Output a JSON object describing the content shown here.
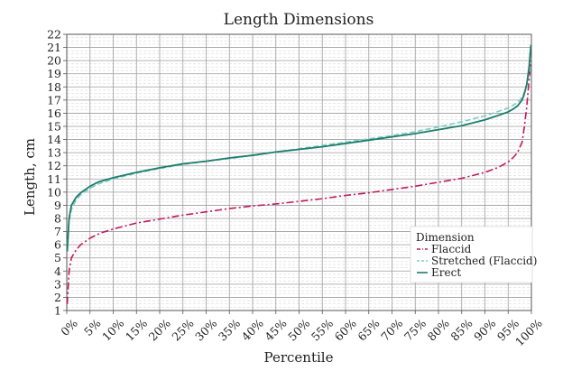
{
  "chart_data": {
    "type": "line",
    "title": "Length Dimensions",
    "xlabel": "Percentile",
    "ylabel": "Length, cm",
    "xlim": [
      0,
      100
    ],
    "ylim": [
      1,
      22
    ],
    "x_ticks": [
      "0%",
      "5%",
      "10%",
      "15%",
      "20%",
      "25%",
      "30%",
      "35%",
      "40%",
      "45%",
      "50%",
      "55%",
      "60%",
      "65%",
      "70%",
      "75%",
      "80%",
      "85%",
      "90%",
      "95%",
      "100%"
    ],
    "y_ticks": [
      1,
      2,
      3,
      4,
      5,
      6,
      7,
      8,
      9,
      10,
      11,
      12,
      13,
      14,
      15,
      16,
      17,
      18,
      19,
      20,
      21,
      22
    ],
    "grid": true,
    "legend": {
      "title": "Dimension",
      "placement": "bottom-right"
    },
    "series": [
      {
        "name": "Flaccid",
        "color": "#c2185b",
        "dash": "dash-dot",
        "x": [
          0.1,
          0.5,
          1,
          2,
          3,
          5,
          7,
          10,
          15,
          20,
          25,
          30,
          35,
          40,
          45,
          50,
          55,
          60,
          65,
          70,
          75,
          80,
          85,
          90,
          93,
          95,
          96,
          97,
          98,
          98.5,
          99,
          99.5,
          99.9
        ],
        "y": [
          1.5,
          4.0,
          5.0,
          5.6,
          6.0,
          6.5,
          6.85,
          7.2,
          7.65,
          7.95,
          8.25,
          8.5,
          8.75,
          8.95,
          9.1,
          9.3,
          9.5,
          9.75,
          9.95,
          10.2,
          10.45,
          10.75,
          11.05,
          11.5,
          11.9,
          12.3,
          12.6,
          13.0,
          13.8,
          15.0,
          16.5,
          18.5,
          20.0
        ]
      },
      {
        "name": "Stretched (Flaccid)",
        "color": "#80cbc4",
        "dash": "dashed",
        "x": [
          0.1,
          0.5,
          1,
          2,
          3,
          5,
          7,
          10,
          15,
          20,
          25,
          30,
          35,
          40,
          45,
          50,
          55,
          60,
          65,
          70,
          75,
          80,
          85,
          90,
          93,
          95,
          96,
          97,
          98,
          98.5,
          99,
          99.5,
          99.9
        ],
        "y": [
          6.0,
          7.8,
          8.7,
          9.4,
          9.8,
          10.3,
          10.65,
          11.0,
          11.45,
          11.8,
          12.1,
          12.35,
          12.55,
          12.8,
          13.05,
          13.3,
          13.55,
          13.8,
          14.05,
          14.3,
          14.6,
          14.95,
          15.35,
          15.8,
          16.15,
          16.4,
          16.6,
          16.8,
          17.2,
          17.6,
          18.2,
          19.0,
          19.8
        ]
      },
      {
        "name": "Erect",
        "color": "#1b7d6b",
        "dash": "solid",
        "x": [
          0.1,
          0.5,
          1,
          2,
          3,
          5,
          7,
          10,
          15,
          20,
          25,
          30,
          35,
          40,
          45,
          50,
          55,
          60,
          65,
          70,
          75,
          80,
          85,
          90,
          93,
          95,
          96,
          97,
          98,
          98.5,
          99,
          99.5,
          99.9
        ],
        "y": [
          5.5,
          8.0,
          9.0,
          9.6,
          9.95,
          10.45,
          10.8,
          11.1,
          11.5,
          11.85,
          12.15,
          12.35,
          12.6,
          12.8,
          13.05,
          13.25,
          13.45,
          13.7,
          13.95,
          14.2,
          14.45,
          14.75,
          15.05,
          15.5,
          15.85,
          16.1,
          16.3,
          16.55,
          17.0,
          17.5,
          18.2,
          19.5,
          21.2
        ]
      }
    ]
  }
}
